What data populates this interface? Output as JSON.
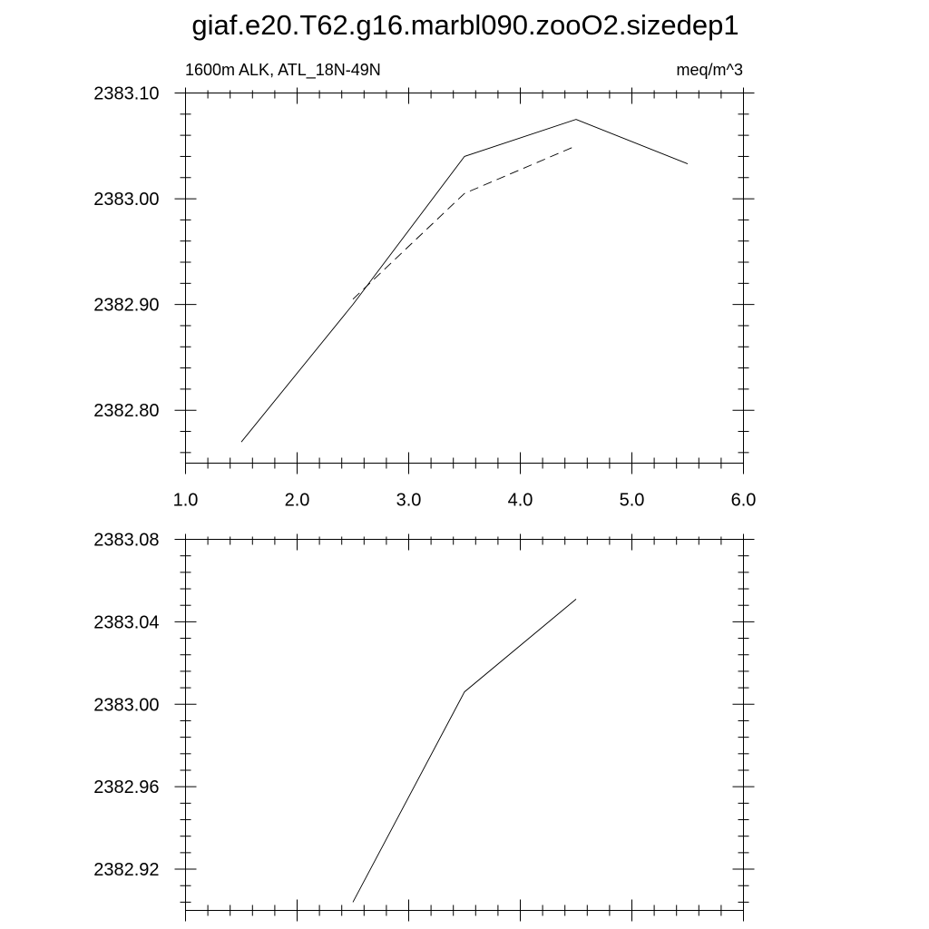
{
  "figure": {
    "title": "giaf.e20.T62.g16.marbl090.zooO2.sizedep1"
  },
  "chart_data": [
    {
      "type": "line",
      "subtitle_left": "1600m ALK, ATL_18N-49N",
      "subtitle_right": "meq/m^3",
      "xlim": [
        1.0,
        6.0
      ],
      "ylim": [
        2382.75,
        2383.1
      ],
      "x_ticks": [
        1.0,
        2.0,
        3.0,
        4.0,
        5.0,
        6.0
      ],
      "x_tick_labels": [
        "1.0",
        "2.0",
        "3.0",
        "4.0",
        "5.0",
        "6.0"
      ],
      "y_ticks": [
        2382.8,
        2382.9,
        2383.0,
        2383.1
      ],
      "y_tick_labels": [
        "2382.80",
        "2382.90",
        "2383.00",
        "2383.10"
      ],
      "grid": false,
      "series": [
        {
          "style": "solid",
          "x": [
            1.5,
            2.5,
            3.5,
            4.5,
            5.5
          ],
          "y": [
            2382.77,
            2382.9,
            2383.04,
            2383.075,
            2383.033
          ]
        },
        {
          "style": "dashed",
          "x": [
            2.5,
            3.5,
            4.5
          ],
          "y": [
            2382.905,
            2383.005,
            2383.05
          ]
        }
      ]
    },
    {
      "type": "line",
      "xlim": [
        1.0,
        6.0
      ],
      "ylim": [
        2382.9,
        2383.08
      ],
      "x_ticks": [
        1.0,
        2.0,
        3.0,
        4.0,
        5.0,
        6.0
      ],
      "x_tick_labels": [],
      "y_ticks": [
        2382.92,
        2382.96,
        2383.0,
        2383.04,
        2383.08
      ],
      "y_tick_labels": [
        "2382.92",
        "2382.96",
        "2383.00",
        "2383.04",
        "2383.08"
      ],
      "grid": false,
      "series": [
        {
          "style": "solid",
          "x": [
            2.5,
            3.5,
            4.5
          ],
          "y": [
            2382.904,
            2383.006,
            2383.051
          ]
        }
      ]
    }
  ]
}
